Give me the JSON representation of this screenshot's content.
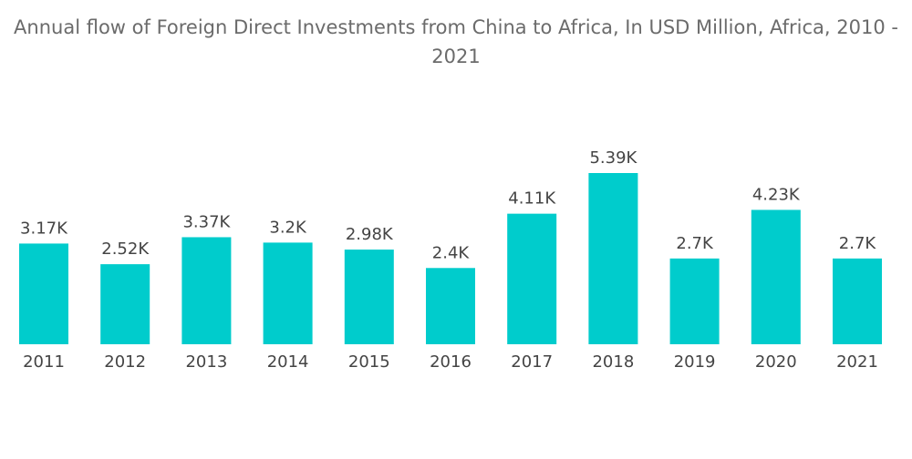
{
  "chart_data": {
    "type": "bar",
    "title_line1": "Annual flow of Foreign Direct Investments from China to Africa, In USD Million, Africa, 2010 -",
    "title_line2": "2021",
    "categories": [
      "2011",
      "2012",
      "2013",
      "2014",
      "2015",
      "2016",
      "2017",
      "2018",
      "2019",
      "2020",
      "2021"
    ],
    "values": [
      3170,
      2520,
      3370,
      3200,
      2980,
      2400,
      4110,
      5390,
      2700,
      4230,
      2700
    ],
    "value_labels": [
      "3.17K",
      "2.52K",
      "3.37K",
      "3.2K",
      "2.98K",
      "2.4K",
      "4.11K",
      "5.39K",
      "2.7K",
      "4.23K",
      "2.7K"
    ],
    "ylim": [
      0,
      5390
    ],
    "grid": false,
    "bar_color": "#00cccc"
  }
}
